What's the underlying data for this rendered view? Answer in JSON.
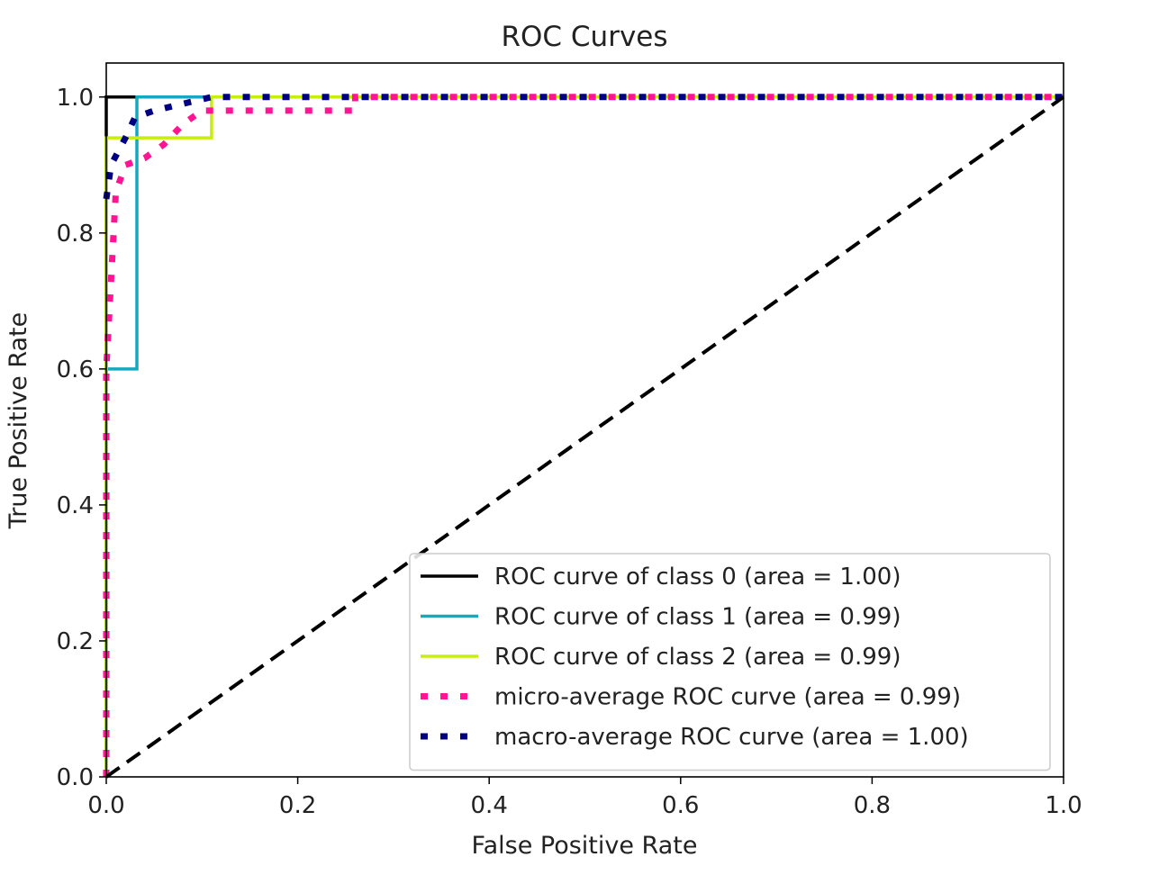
{
  "chart_data": {
    "type": "line",
    "title": "ROC Curves",
    "xlabel": "False Positive Rate",
    "ylabel": "True Positive Rate",
    "xlim": [
      0.0,
      1.0
    ],
    "ylim": [
      0.0,
      1.05
    ],
    "xticks": [
      "0.0",
      "0.2",
      "0.4",
      "0.6",
      "0.8",
      "1.0"
    ],
    "yticks": [
      "0.0",
      "0.2",
      "0.4",
      "0.6",
      "0.8",
      "1.0"
    ],
    "grid": false,
    "legend_position": "lower-right",
    "series": [
      {
        "name": "ROC curve of class 0 (area = 1.00)",
        "color": "#000000",
        "style": "solid",
        "x": [
          0.0,
          0.0,
          1.0
        ],
        "y": [
          0.0,
          1.0,
          1.0
        ]
      },
      {
        "name": "ROC curve of class 1 (area = 0.99)",
        "color": "#17a7bf",
        "style": "solid",
        "x": [
          0.0,
          0.0,
          0.032,
          0.032,
          1.0
        ],
        "y": [
          0.0,
          0.6,
          0.6,
          1.0,
          1.0
        ]
      },
      {
        "name": "ROC curve of class 2 (area = 0.99)",
        "color": "#c8ee10",
        "style": "solid",
        "x": [
          0.0,
          0.0,
          0.11,
          0.11,
          1.0
        ],
        "y": [
          0.0,
          0.94,
          0.94,
          1.0,
          1.0
        ]
      },
      {
        "name": "micro-average ROC curve (area = 0.99)",
        "color": "#ff1493",
        "style": "dotted",
        "x": [
          0.0,
          0.0,
          0.01,
          0.02,
          0.04,
          0.06,
          0.08,
          0.1,
          0.26,
          0.26,
          1.0
        ],
        "y": [
          0.0,
          0.6,
          0.86,
          0.9,
          0.91,
          0.93,
          0.96,
          0.98,
          0.98,
          1.0,
          1.0
        ]
      },
      {
        "name": "macro-average ROC curve (area = 1.00)",
        "color": "#000080",
        "style": "dotted",
        "x": [
          0.0,
          0.005,
          0.02,
          0.03,
          0.05,
          0.08,
          0.11,
          1.0
        ],
        "y": [
          0.85,
          0.9,
          0.94,
          0.97,
          0.98,
          0.99,
          1.0,
          1.0
        ]
      },
      {
        "name": "",
        "color": "#000000",
        "style": "dashed",
        "x": [
          0.0,
          1.0
        ],
        "y": [
          0.0,
          1.0
        ],
        "in_legend": false
      }
    ]
  }
}
